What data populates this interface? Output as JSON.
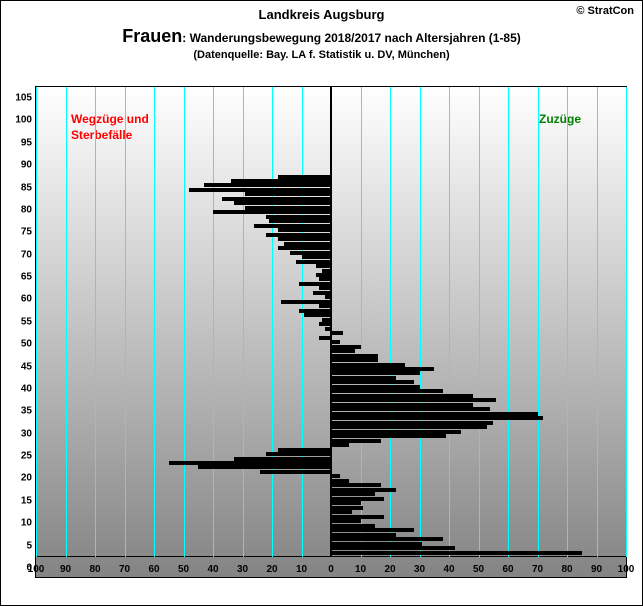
{
  "copyright": "© StratCon",
  "subtitle": "Landkreis Augsburg",
  "title_main": "Frauen",
  "title_rest": ": Wanderungsbewegung 2018/2017 nach Altersjahren (1-85)",
  "source": "(Datenquelle: Bay. LA f. Statistik u. DV, München)",
  "label_left_line1": "Wegzüge und",
  "label_left_line2": "Sterbefälle",
  "label_right": "Zuzüge",
  "chart": {
    "type": "bar-horizontal-bidirectional",
    "xlim": [
      -100,
      100
    ],
    "xtick_step": 10,
    "xticks_left": [
      100,
      90,
      80,
      70,
      60,
      50,
      40,
      30,
      20,
      10,
      0
    ],
    "xticks_right": [
      0,
      10,
      20,
      30,
      40,
      50,
      60,
      70,
      80,
      90,
      100
    ],
    "ylim": [
      0,
      105
    ],
    "ytick_step": 5,
    "yticks": [
      0,
      5,
      10,
      15,
      20,
      25,
      30,
      35,
      40,
      45,
      50,
      55,
      60,
      65,
      70,
      75,
      80,
      85,
      90,
      95,
      100,
      105
    ],
    "grid_color": "#00ffff",
    "background_gradient": [
      "#ffffff",
      "#848484"
    ],
    "bar_color": "#000000",
    "label_left_color": "#ff0000",
    "label_right_color": "#008000",
    "xlabel_fontsize": 10,
    "ylabel_fontsize": 10,
    "data": [
      {
        "age": 1,
        "v": 85
      },
      {
        "age": 2,
        "v": 42
      },
      {
        "age": 3,
        "v": 31
      },
      {
        "age": 4,
        "v": 38
      },
      {
        "age": 5,
        "v": 22
      },
      {
        "age": 6,
        "v": 28
      },
      {
        "age": 7,
        "v": 15
      },
      {
        "age": 8,
        "v": 10
      },
      {
        "age": 9,
        "v": 18
      },
      {
        "age": 10,
        "v": 7
      },
      {
        "age": 11,
        "v": 11
      },
      {
        "age": 12,
        "v": 10
      },
      {
        "age": 13,
        "v": 18
      },
      {
        "age": 14,
        "v": 15
      },
      {
        "age": 15,
        "v": 22
      },
      {
        "age": 16,
        "v": 17
      },
      {
        "age": 17,
        "v": 6
      },
      {
        "age": 18,
        "v": 3
      },
      {
        "age": 19,
        "v": -24
      },
      {
        "age": 20,
        "v": -45
      },
      {
        "age": 21,
        "v": -55
      },
      {
        "age": 22,
        "v": -33
      },
      {
        "age": 23,
        "v": -22
      },
      {
        "age": 24,
        "v": -18
      },
      {
        "age": 25,
        "v": 6
      },
      {
        "age": 26,
        "v": 17
      },
      {
        "age": 27,
        "v": 39
      },
      {
        "age": 28,
        "v": 44
      },
      {
        "age": 29,
        "v": 53
      },
      {
        "age": 30,
        "v": 55
      },
      {
        "age": 31,
        "v": 72
      },
      {
        "age": 32,
        "v": 70
      },
      {
        "age": 33,
        "v": 54
      },
      {
        "age": 34,
        "v": 48
      },
      {
        "age": 35,
        "v": 56
      },
      {
        "age": 36,
        "v": 48
      },
      {
        "age": 37,
        "v": 38
      },
      {
        "age": 38,
        "v": 30
      },
      {
        "age": 39,
        "v": 28
      },
      {
        "age": 40,
        "v": 22
      },
      {
        "age": 41,
        "v": 30
      },
      {
        "age": 42,
        "v": 35
      },
      {
        "age": 43,
        "v": 25
      },
      {
        "age": 44,
        "v": 16
      },
      {
        "age": 45,
        "v": 16
      },
      {
        "age": 46,
        "v": 8
      },
      {
        "age": 47,
        "v": 10
      },
      {
        "age": 48,
        "v": 3
      },
      {
        "age": 49,
        "v": -4
      },
      {
        "age": 50,
        "v": 4
      },
      {
        "age": 51,
        "v": -2
      },
      {
        "age": 52,
        "v": -4
      },
      {
        "age": 53,
        "v": -3
      },
      {
        "age": 54,
        "v": -9
      },
      {
        "age": 55,
        "v": -11
      },
      {
        "age": 56,
        "v": -4
      },
      {
        "age": 57,
        "v": -17
      },
      {
        "age": 58,
        "v": -2
      },
      {
        "age": 59,
        "v": -6
      },
      {
        "age": 60,
        "v": -4
      },
      {
        "age": 61,
        "v": -11
      },
      {
        "age": 62,
        "v": -4
      },
      {
        "age": 63,
        "v": -5
      },
      {
        "age": 64,
        "v": -3
      },
      {
        "age": 65,
        "v": -5
      },
      {
        "age": 66,
        "v": -12
      },
      {
        "age": 67,
        "v": -10
      },
      {
        "age": 68,
        "v": -14
      },
      {
        "age": 69,
        "v": -18
      },
      {
        "age": 70,
        "v": -16
      },
      {
        "age": 71,
        "v": -18
      },
      {
        "age": 72,
        "v": -22
      },
      {
        "age": 73,
        "v": -18
      },
      {
        "age": 74,
        "v": -26
      },
      {
        "age": 75,
        "v": -21
      },
      {
        "age": 76,
        "v": -22
      },
      {
        "age": 77,
        "v": -40
      },
      {
        "age": 78,
        "v": -29
      },
      {
        "age": 79,
        "v": -33
      },
      {
        "age": 80,
        "v": -37
      },
      {
        "age": 81,
        "v": -29
      },
      {
        "age": 82,
        "v": -48
      },
      {
        "age": 83,
        "v": -43
      },
      {
        "age": 84,
        "v": -34
      },
      {
        "age": 85,
        "v": -18
      }
    ]
  }
}
